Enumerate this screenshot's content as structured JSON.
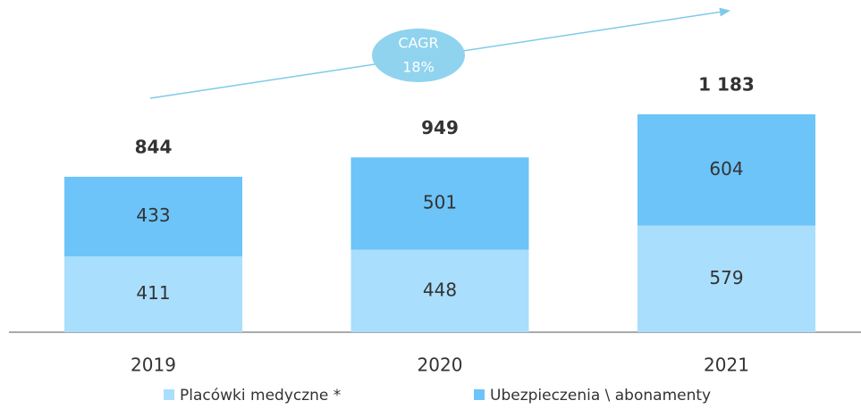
{
  "chart_data": {
    "type": "stacked_bar",
    "categories": [
      "2019",
      "2020",
      "2021"
    ],
    "series": [
      {
        "name": "Placówki medyczne *",
        "color": "#a9defc",
        "values": [
          411,
          448,
          579
        ]
      },
      {
        "name": "Ubezpieczenia \\ abonamenty",
        "color": "#6cc4f9",
        "values": [
          433,
          501,
          604
        ]
      }
    ],
    "totals": {
      "values": [
        844,
        949,
        1183
      ],
      "value_labels": [
        "844",
        "949",
        "1 183"
      ]
    },
    "annotation": [
      "CAGR",
      "18%"
    ]
  }
}
